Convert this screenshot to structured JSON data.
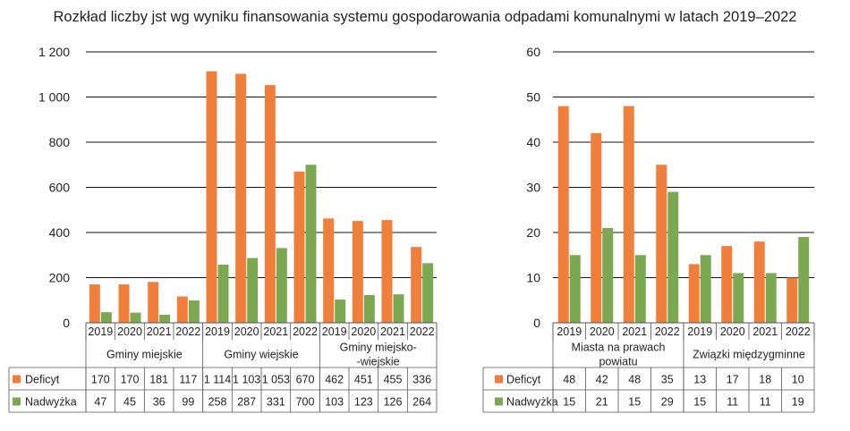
{
  "title": "Rozkład liczby jst wg wyniku finansowania systemu gospodarowania odpadami komunalnymi w latach 2019–2022",
  "colors": {
    "deficyt": "#F07F3C",
    "nadwyzka": "#7BA850",
    "grid": "#9a9a9a",
    "table": "#555555"
  },
  "chart_data": [
    {
      "type": "bar",
      "ylim": [
        0,
        1200
      ],
      "yticks": [
        0,
        200,
        400,
        600,
        800,
        1000,
        1200
      ],
      "ytick_labels": [
        "0",
        "200",
        "400",
        "600",
        "800",
        "1 000",
        "1 200"
      ],
      "groups": [
        "Gminy miejskie",
        "Gminy wiejskie",
        "Gminy miejsko-\n-wiejskie"
      ],
      "years": [
        "2019",
        "2020",
        "2021",
        "2022"
      ],
      "series": [
        {
          "name": "Deficyt",
          "color_key": "deficyt",
          "values": [
            170,
            170,
            181,
            117,
            1114,
            1103,
            1053,
            670,
            462,
            451,
            455,
            336
          ],
          "labels": [
            "170",
            "170",
            "181",
            "117",
            "1 114",
            "1 103",
            "1 053",
            "670",
            "462",
            "451",
            "455",
            "336"
          ]
        },
        {
          "name": "Nadwyżka",
          "color_key": "nadwyzka",
          "values": [
            47,
            45,
            36,
            99,
            258,
            287,
            331,
            700,
            103,
            123,
            126,
            264
          ],
          "labels": [
            "47",
            "45",
            "36",
            "99",
            "258",
            "287",
            "331",
            "700",
            "103",
            "123",
            "126",
            "264"
          ]
        }
      ]
    },
    {
      "type": "bar",
      "ylim": [
        0,
        60
      ],
      "yticks": [
        0,
        10,
        20,
        30,
        40,
        50,
        60
      ],
      "ytick_labels": [
        "0",
        "10",
        "20",
        "30",
        "40",
        "50",
        "60"
      ],
      "groups": [
        "Miasta na prawach\npowiatu",
        "Związki międzygminne"
      ],
      "years": [
        "2019",
        "2020",
        "2021",
        "2022"
      ],
      "series": [
        {
          "name": "Deficyt",
          "color_key": "deficyt",
          "values": [
            48,
            42,
            48,
            35,
            13,
            17,
            18,
            10
          ],
          "labels": [
            "48",
            "42",
            "48",
            "35",
            "13",
            "17",
            "18",
            "10"
          ]
        },
        {
          "name": "Nadwyżka",
          "color_key": "nadwyzka",
          "values": [
            15,
            21,
            15,
            29,
            15,
            11,
            11,
            19
          ],
          "labels": [
            "15",
            "21",
            "15",
            "29",
            "15",
            "11",
            "11",
            "19"
          ]
        }
      ]
    }
  ]
}
